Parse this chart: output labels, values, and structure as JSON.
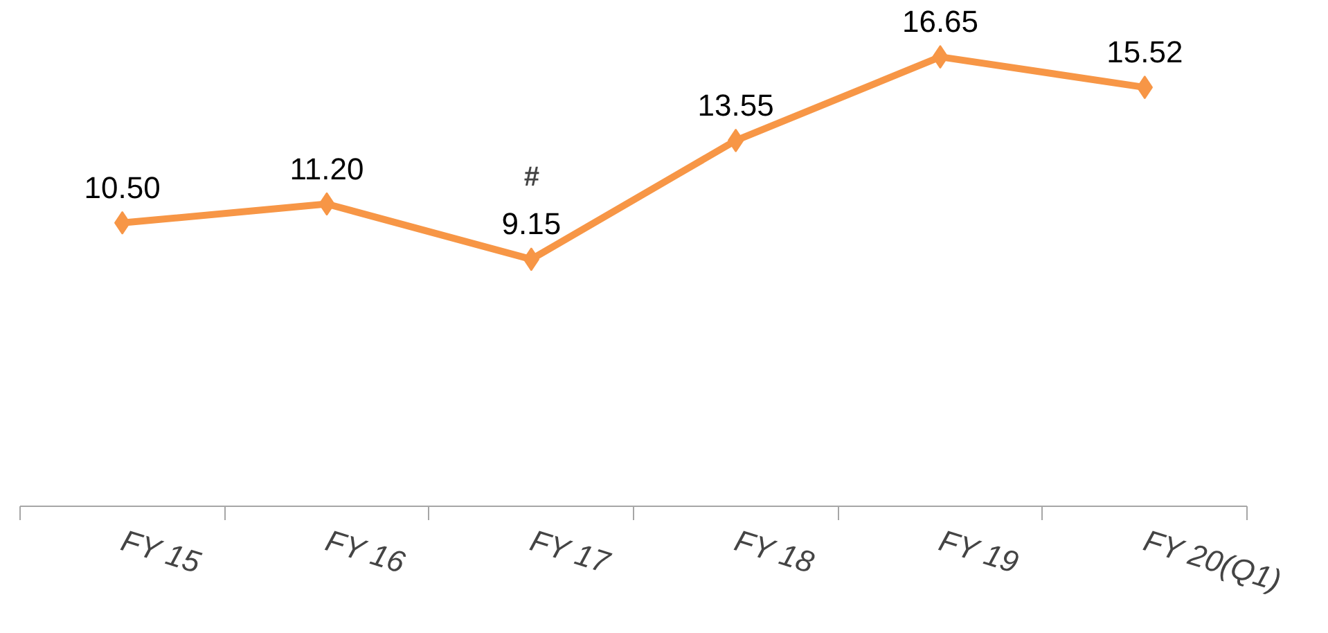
{
  "chart_data": {
    "type": "line",
    "categories": [
      "FY 15",
      "FY 16",
      "FY 17",
      "FY 18",
      "FY 19",
      "FY 20(Q1)"
    ],
    "series": [
      {
        "color": "#f79646",
        "values": [
          10.5,
          11.2,
          9.15,
          13.55,
          16.65,
          15.52
        ],
        "value_labels": [
          "10.50",
          "11.20",
          "9.15",
          "13.55",
          "16.65",
          "15.52"
        ]
      }
    ],
    "tick_labels": "x",
    "marker": "diamond",
    "line_style": "solid",
    "annotations": [
      {
        "text": "#",
        "x": "FY 17",
        "y": 9.15
      }
    ]
  }
}
